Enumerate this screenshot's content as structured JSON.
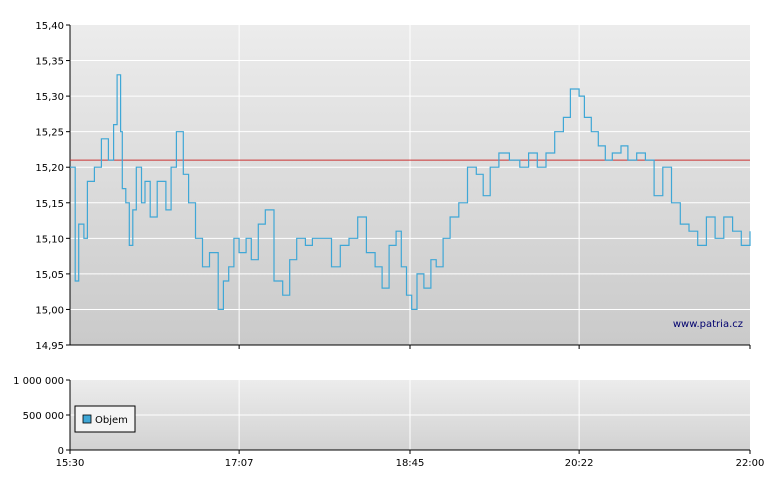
{
  "chart_data": [
    {
      "type": "line",
      "y_ticks": [
        "15,40",
        "15,35",
        "15,30",
        "15,25",
        "15,20",
        "15,15",
        "15,10",
        "15,05",
        "15,00",
        "14,95"
      ],
      "ylim": [
        14.95,
        15.4
      ],
      "x_ticks": [
        "15:30",
        "17:07",
        "18:45",
        "20:22",
        "22:00"
      ],
      "xlim": [
        "15:30",
        "22:00"
      ],
      "reference_line": 15.21,
      "reference_color": "#cc3333",
      "line_color": "#3fa7d6",
      "watermark": "www.patria.cz",
      "grid": true,
      "series": [
        {
          "x": [
            "15:30",
            "15:33",
            "15:35",
            "15:38",
            "15:40",
            "15:44",
            "15:48",
            "15:52",
            "15:55",
            "15:57",
            "15:59",
            "16:00",
            "16:02",
            "16:04",
            "16:06",
            "16:08",
            "16:11",
            "16:13",
            "16:16",
            "16:20",
            "16:25",
            "16:28",
            "16:31",
            "16:35",
            "16:38",
            "16:42",
            "16:46",
            "16:50",
            "16:55",
            "16:58",
            "17:01",
            "17:04",
            "17:07",
            "17:11",
            "17:14",
            "17:18",
            "17:22",
            "17:27",
            "17:32",
            "17:36",
            "17:40",
            "17:45",
            "17:49",
            "17:55",
            "18:00",
            "18:05",
            "18:10",
            "18:15",
            "18:20",
            "18:25",
            "18:29",
            "18:33",
            "18:37",
            "18:40",
            "18:43",
            "18:46",
            "18:49",
            "18:53",
            "18:57",
            "19:00",
            "19:04",
            "19:08",
            "19:13",
            "19:18",
            "19:23",
            "19:27",
            "19:31",
            "19:36",
            "19:42",
            "19:48",
            "19:53",
            "19:58",
            "20:03",
            "20:08",
            "20:13",
            "20:17",
            "20:22",
            "20:25",
            "20:29",
            "20:33",
            "20:37",
            "20:41",
            "20:46",
            "20:50",
            "20:55",
            "21:00",
            "21:05",
            "21:10",
            "21:15",
            "21:20",
            "21:25",
            "21:30",
            "21:35",
            "21:40",
            "21:45",
            "21:50",
            "21:55",
            "22:00"
          ],
          "values": [
            15.2,
            15.04,
            15.12,
            15.1,
            15.18,
            15.2,
            15.24,
            15.21,
            15.26,
            15.33,
            15.25,
            15.17,
            15.15,
            15.09,
            15.14,
            15.2,
            15.15,
            15.18,
            15.13,
            15.18,
            15.14,
            15.2,
            15.25,
            15.19,
            15.15,
            15.1,
            15.06,
            15.08,
            15.0,
            15.04,
            15.06,
            15.1,
            15.08,
            15.1,
            15.07,
            15.12,
            15.14,
            15.04,
            15.02,
            15.07,
            15.1,
            15.09,
            15.1,
            15.1,
            15.06,
            15.09,
            15.1,
            15.13,
            15.08,
            15.06,
            15.03,
            15.09,
            15.11,
            15.06,
            15.02,
            15.0,
            15.05,
            15.03,
            15.07,
            15.06,
            15.1,
            15.13,
            15.15,
            15.2,
            15.19,
            15.16,
            15.2,
            15.22,
            15.21,
            15.2,
            15.22,
            15.2,
            15.22,
            15.25,
            15.27,
            15.31,
            15.3,
            15.27,
            15.25,
            15.23,
            15.21,
            15.22,
            15.23,
            15.21,
            15.22,
            15.21,
            15.16,
            15.2,
            15.15,
            15.12,
            15.11,
            15.09,
            15.13,
            15.1,
            15.13,
            15.11,
            15.09,
            15.11
          ]
        }
      ]
    },
    {
      "type": "bar",
      "y_ticks": [
        "1 000 000",
        "500 000",
        "0"
      ],
      "ylim": [
        0,
        1000000
      ],
      "x_ticks": [
        "15:30",
        "17:07",
        "18:45",
        "20:22",
        "22:00"
      ],
      "legend": "Objem",
      "legend_color": "#3fa7d6",
      "grid": true
    }
  ]
}
